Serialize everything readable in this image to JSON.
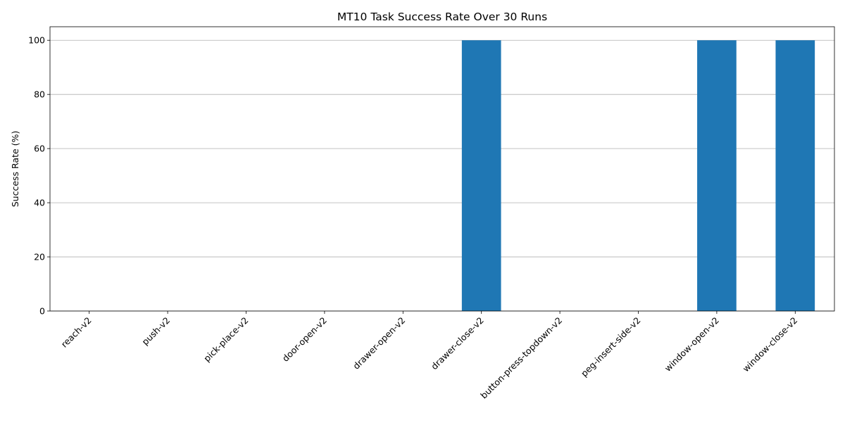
{
  "chart_data": {
    "type": "bar",
    "title": "MT10 Task Success Rate Over 30 Runs",
    "xlabel": "",
    "ylabel": "Success Rate (%)",
    "categories": [
      "reach-v2",
      "push-v2",
      "pick-place-v2",
      "door-open-v2",
      "drawer-open-v2",
      "drawer-close-v2",
      "button-press-topdown-v2",
      "peg-insert-side-v2",
      "window-open-v2",
      "window-close-v2"
    ],
    "values": [
      0,
      0,
      0,
      0,
      0,
      100,
      0,
      0,
      100,
      100
    ],
    "ylim": [
      0,
      105
    ],
    "yticks": [
      0,
      20,
      40,
      60,
      80,
      100
    ],
    "grid": "y",
    "legend": "none",
    "bar_color": "#1f77b4",
    "grid_color": "#b0b0b0"
  }
}
